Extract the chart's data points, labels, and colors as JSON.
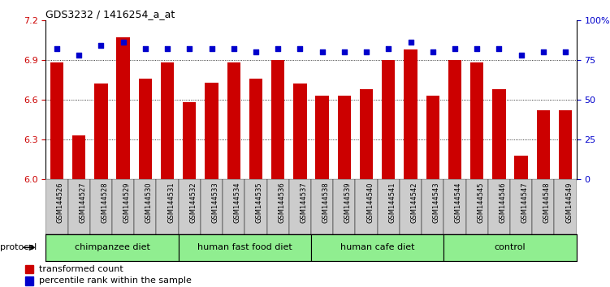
{
  "title": "GDS3232 / 1416254_a_at",
  "samples": [
    "GSM144526",
    "GSM144527",
    "GSM144528",
    "GSM144529",
    "GSM144530",
    "GSM144531",
    "GSM144532",
    "GSM144533",
    "GSM144534",
    "GSM144535",
    "GSM144536",
    "GSM144537",
    "GSM144538",
    "GSM144539",
    "GSM144540",
    "GSM144541",
    "GSM144542",
    "GSM144543",
    "GSM144544",
    "GSM144545",
    "GSM144546",
    "GSM144547",
    "GSM144548",
    "GSM144549"
  ],
  "bar_values": [
    6.88,
    6.33,
    6.72,
    7.07,
    6.76,
    6.88,
    6.58,
    6.73,
    6.88,
    6.76,
    6.9,
    6.72,
    6.63,
    6.63,
    6.68,
    6.9,
    6.98,
    6.63,
    6.9,
    6.88,
    6.68,
    6.18,
    6.52,
    6.52
  ],
  "percentile_values": [
    82,
    78,
    84,
    86,
    82,
    82,
    82,
    82,
    82,
    80,
    82,
    82,
    80,
    80,
    80,
    82,
    86,
    80,
    82,
    82,
    82,
    78,
    80,
    80
  ],
  "bar_color": "#cc0000",
  "percentile_color": "#0000cc",
  "ylim_left": [
    6.0,
    7.2
  ],
  "ylim_right": [
    0,
    100
  ],
  "yticks_left": [
    6.0,
    6.3,
    6.6,
    6.9,
    7.2
  ],
  "yticks_right": [
    0,
    25,
    50,
    75,
    100
  ],
  "ytick_labels_right": [
    "0",
    "25",
    "50",
    "75",
    "100%"
  ],
  "groups": [
    {
      "label": "chimpanzee diet",
      "start": 0,
      "end": 5,
      "color": "#90ee90"
    },
    {
      "label": "human fast food diet",
      "start": 6,
      "end": 11,
      "color": "#90ee90"
    },
    {
      "label": "human cafe diet",
      "start": 12,
      "end": 17,
      "color": "#90ee90"
    },
    {
      "label": "control",
      "start": 18,
      "end": 23,
      "color": "#90ee90"
    }
  ],
  "protocol_label": "protocol",
  "legend_bar_label": "transformed count",
  "legend_pct_label": "percentile rank within the sample",
  "tick_color_left": "#cc0000",
  "tick_color_right": "#0000cc",
  "bar_width": 0.6,
  "xtick_bg_color": "#cccccc",
  "dotted_lines": [
    6.3,
    6.6,
    6.9
  ]
}
